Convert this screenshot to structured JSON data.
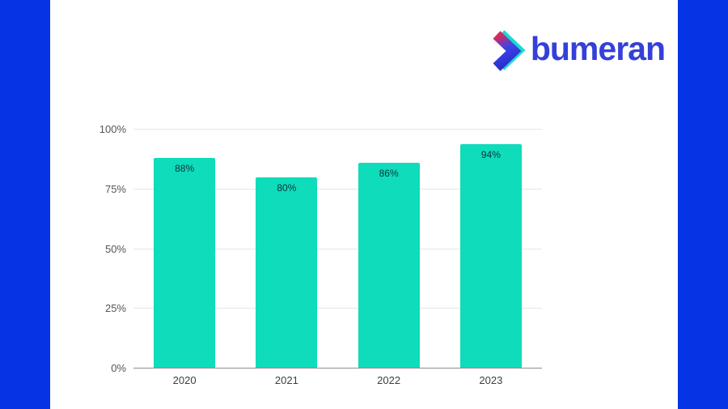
{
  "page": {
    "background_color": "#0633e4",
    "panel_color": "#ffffff"
  },
  "logo": {
    "brand": "bumeran",
    "wordmark_color": "#3540d8",
    "icon": "bumeran-chevron-icon",
    "icon_colors": {
      "teal": "#1ad9cf",
      "pink": "#e8254f",
      "blue": "#2b2fd0"
    }
  },
  "chart_data": {
    "type": "bar",
    "title": "",
    "xlabel": "",
    "ylabel": "",
    "categories": [
      "2020",
      "2021",
      "2022",
      "2023"
    ],
    "values": [
      88,
      80,
      86,
      94
    ],
    "bar_labels": [
      "88%",
      "80%",
      "86%",
      "94%"
    ],
    "ylim": [
      0,
      100
    ],
    "yticks": [
      {
        "value": 0,
        "label": "0%"
      },
      {
        "value": 25,
        "label": "25%"
      },
      {
        "value": 50,
        "label": "50%"
      },
      {
        "value": 75,
        "label": "75%"
      },
      {
        "value": 100,
        "label": "100%"
      }
    ],
    "bar_color": "#0edcba",
    "value_label_color": "#10323a",
    "grid": "on",
    "legend": "none"
  }
}
